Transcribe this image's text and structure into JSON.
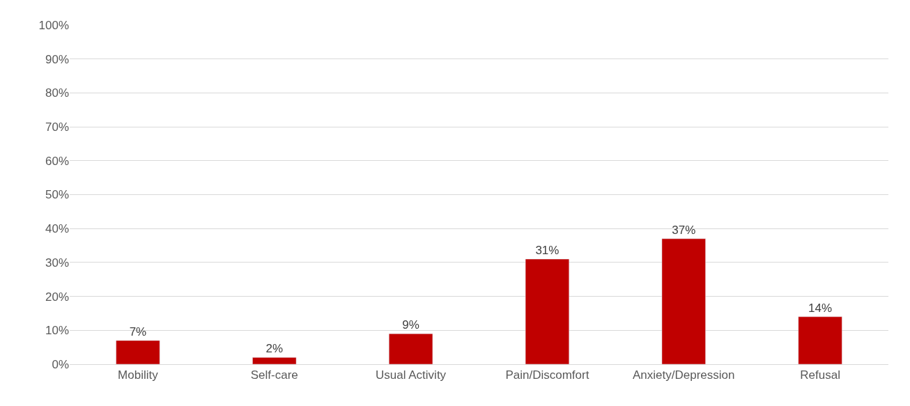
{
  "chart_data": {
    "type": "bar",
    "categories": [
      "Mobility",
      "Self-care",
      "Usual Activity",
      "Pain/Discomfort",
      "Anxiety/Depression",
      "Refusal"
    ],
    "values": [
      7,
      2,
      9,
      31,
      37,
      14
    ],
    "value_labels": [
      "7%",
      "2%",
      "9%",
      "31%",
      "37%",
      "14%"
    ],
    "color": "#c00000",
    "ylim": [
      0,
      100
    ],
    "yticks": [
      {
        "value": 0,
        "label": "0%"
      },
      {
        "value": 10,
        "label": "10%"
      },
      {
        "value": 20,
        "label": "20%"
      },
      {
        "value": 30,
        "label": "30%"
      },
      {
        "value": 40,
        "label": "40%"
      },
      {
        "value": 50,
        "label": "50%"
      },
      {
        "value": 60,
        "label": "60%"
      },
      {
        "value": 70,
        "label": "70%"
      },
      {
        "value": 80,
        "label": "80%"
      },
      {
        "value": 90,
        "label": "90%"
      },
      {
        "value": 100,
        "label": "100%"
      }
    ],
    "grid": "y"
  }
}
